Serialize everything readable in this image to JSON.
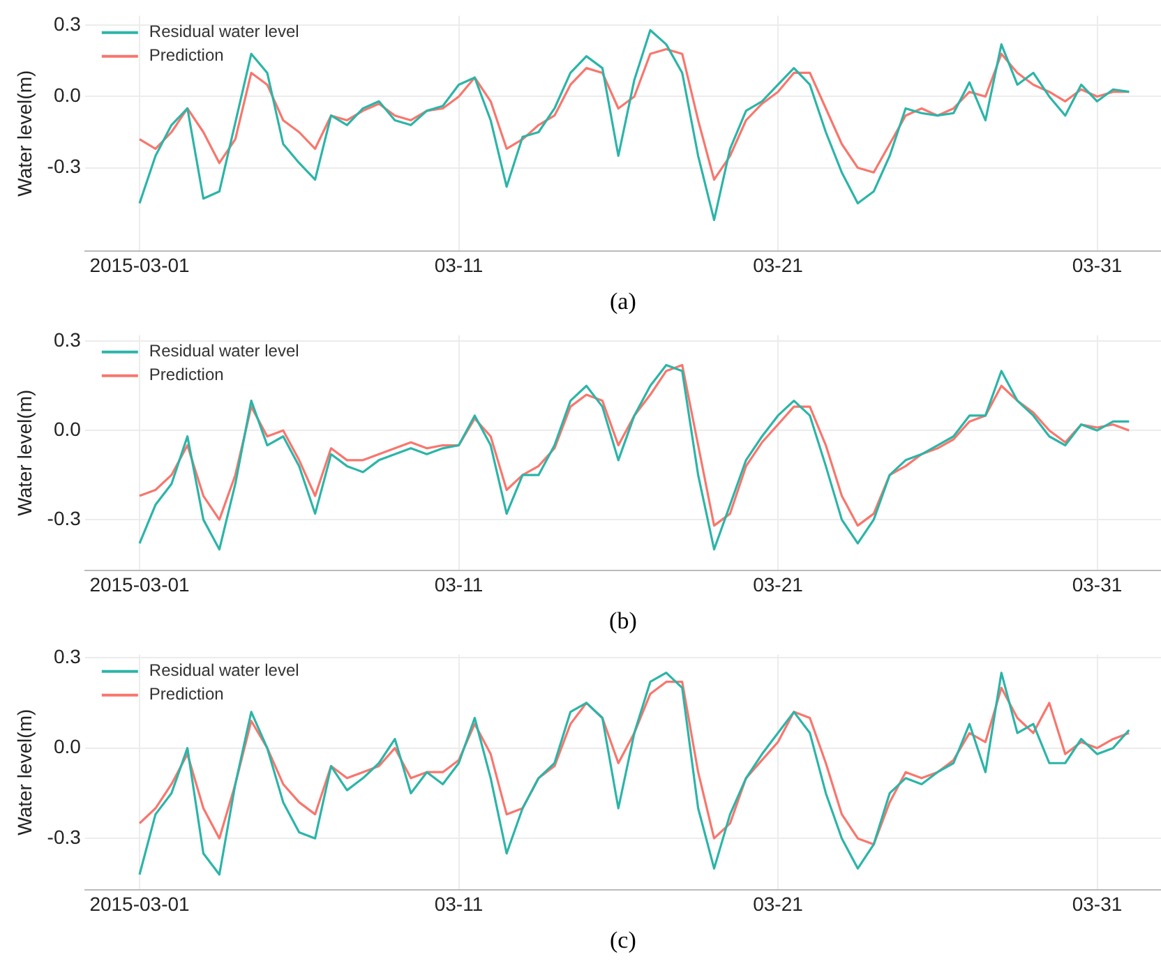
{
  "chart_data": [
    {
      "type": "line",
      "xlabel": "(a)",
      "ylabel": "Water level(m)",
      "legend": "top left",
      "grid": true,
      "marker": "none",
      "line_style": "solid",
      "xlim": [
        "2015-02-27T07:00",
        "2015-04-02T00:00"
      ],
      "ylim": [
        -0.65,
        0.34
      ],
      "yticks": [
        {
          "value": -0.3,
          "label": "-0.3"
        },
        {
          "value": 0,
          "label": "0.0"
        },
        {
          "value": 0.3,
          "label": "0.3"
        }
      ],
      "xticks": [
        {
          "value": "2015-03-01",
          "label": "2015-03-01"
        },
        {
          "value": "2015-03-11",
          "label": "03-11"
        },
        {
          "value": "2015-03-21",
          "label": "03-21"
        },
        {
          "value": "2015-03-31",
          "label": "03-31"
        }
      ],
      "x": [
        "2015-03-01T00:00",
        "2015-03-01T12:00",
        "2015-03-02T00:00",
        "2015-03-02T12:00",
        "2015-03-03T00:00",
        "2015-03-03T12:00",
        "2015-03-04T00:00",
        "2015-03-04T12:00",
        "2015-03-05T00:00",
        "2015-03-05T12:00",
        "2015-03-06T00:00",
        "2015-03-06T12:00",
        "2015-03-07T00:00",
        "2015-03-07T12:00",
        "2015-03-08T00:00",
        "2015-03-08T12:00",
        "2015-03-09T00:00",
        "2015-03-09T12:00",
        "2015-03-10T00:00",
        "2015-03-10T12:00",
        "2015-03-11T00:00",
        "2015-03-11T12:00",
        "2015-03-12T00:00",
        "2015-03-12T12:00",
        "2015-03-13T00:00",
        "2015-03-13T12:00",
        "2015-03-14T00:00",
        "2015-03-14T12:00",
        "2015-03-15T00:00",
        "2015-03-15T12:00",
        "2015-03-16T00:00",
        "2015-03-16T12:00",
        "2015-03-17T00:00",
        "2015-03-17T12:00",
        "2015-03-18T00:00",
        "2015-03-18T12:00",
        "2015-03-19T00:00",
        "2015-03-19T12:00",
        "2015-03-20T00:00",
        "2015-03-20T12:00",
        "2015-03-21T00:00",
        "2015-03-21T12:00",
        "2015-03-22T00:00",
        "2015-03-22T12:00",
        "2015-03-23T00:00",
        "2015-03-23T12:00",
        "2015-03-24T00:00",
        "2015-03-24T12:00",
        "2015-03-25T00:00",
        "2015-03-25T12:00",
        "2015-03-26T00:00",
        "2015-03-26T12:00",
        "2015-03-27T00:00",
        "2015-03-27T12:00",
        "2015-03-28T00:00",
        "2015-03-28T12:00",
        "2015-03-29T00:00",
        "2015-03-29T12:00",
        "2015-03-30T00:00",
        "2015-03-30T12:00",
        "2015-03-31T00:00",
        "2015-03-31T12:00",
        "2015-04-01T00:00"
      ],
      "series": [
        {
          "name": "Residual water level",
          "color": "#2bb5a8",
          "values": [
            -0.45,
            -0.25,
            -0.12,
            -0.05,
            -0.43,
            -0.4,
            -0.11,
            0.18,
            0.1,
            -0.2,
            -0.28,
            -0.35,
            -0.08,
            -0.12,
            -0.05,
            -0.02,
            -0.1,
            -0.12,
            -0.06,
            -0.04,
            0.05,
            0.08,
            -0.1,
            -0.38,
            -0.17,
            -0.15,
            -0.05,
            0.1,
            0.17,
            0.12,
            -0.25,
            0.07,
            0.28,
            0.22,
            0.1,
            -0.25,
            -0.52,
            -0.22,
            -0.06,
            -0.02,
            0.05,
            0.12,
            0.05,
            -0.15,
            -0.32,
            -0.45,
            -0.4,
            -0.25,
            -0.05,
            -0.07,
            -0.08,
            -0.07,
            0.06,
            -0.1,
            0.22,
            0.05,
            0.1,
            0.0,
            -0.08,
            0.05,
            -0.02,
            0.03,
            0.02
          ]
        },
        {
          "name": "Prediction",
          "color": "#f8766d",
          "values": [
            -0.18,
            -0.22,
            -0.15,
            -0.05,
            -0.15,
            -0.28,
            -0.18,
            0.1,
            0.05,
            -0.1,
            -0.15,
            -0.22,
            -0.08,
            -0.1,
            -0.06,
            -0.03,
            -0.08,
            -0.1,
            -0.06,
            -0.05,
            0.0,
            0.08,
            -0.02,
            -0.22,
            -0.18,
            -0.12,
            -0.08,
            0.05,
            0.12,
            0.1,
            -0.05,
            0.0,
            0.18,
            0.2,
            0.18,
            -0.1,
            -0.35,
            -0.25,
            -0.1,
            -0.03,
            0.02,
            0.1,
            0.1,
            -0.05,
            -0.2,
            -0.3,
            -0.32,
            -0.2,
            -0.08,
            -0.05,
            -0.08,
            -0.05,
            0.02,
            0.0,
            0.18,
            0.1,
            0.05,
            0.02,
            -0.02,
            0.03,
            0.0,
            0.02,
            0.02
          ]
        }
      ]
    },
    {
      "type": "line",
      "xlabel": "(b)",
      "ylabel": "Water level(m)",
      "legend": "top left",
      "grid": true,
      "marker": "none",
      "line_style": "solid",
      "xlim": [
        "2015-02-27T07:00",
        "2015-04-02T00:00"
      ],
      "ylim": [
        -0.47,
        0.32
      ],
      "yticks": [
        {
          "value": -0.3,
          "label": "-0.3"
        },
        {
          "value": 0,
          "label": "0.0"
        },
        {
          "value": 0.3,
          "label": "0.3"
        }
      ],
      "xticks": [
        {
          "value": "2015-03-01",
          "label": "2015-03-01"
        },
        {
          "value": "2015-03-11",
          "label": "03-11"
        },
        {
          "value": "2015-03-21",
          "label": "03-21"
        },
        {
          "value": "2015-03-31",
          "label": "03-31"
        }
      ],
      "x": [
        "2015-03-01T00:00",
        "2015-03-01T12:00",
        "2015-03-02T00:00",
        "2015-03-02T12:00",
        "2015-03-03T00:00",
        "2015-03-03T12:00",
        "2015-03-04T00:00",
        "2015-03-04T12:00",
        "2015-03-05T00:00",
        "2015-03-05T12:00",
        "2015-03-06T00:00",
        "2015-03-06T12:00",
        "2015-03-07T00:00",
        "2015-03-07T12:00",
        "2015-03-08T00:00",
        "2015-03-08T12:00",
        "2015-03-09T00:00",
        "2015-03-09T12:00",
        "2015-03-10T00:00",
        "2015-03-10T12:00",
        "2015-03-11T00:00",
        "2015-03-11T12:00",
        "2015-03-12T00:00",
        "2015-03-12T12:00",
        "2015-03-13T00:00",
        "2015-03-13T12:00",
        "2015-03-14T00:00",
        "2015-03-14T12:00",
        "2015-03-15T00:00",
        "2015-03-15T12:00",
        "2015-03-16T00:00",
        "2015-03-16T12:00",
        "2015-03-17T00:00",
        "2015-03-17T12:00",
        "2015-03-18T00:00",
        "2015-03-18T12:00",
        "2015-03-19T00:00",
        "2015-03-19T12:00",
        "2015-03-20T00:00",
        "2015-03-20T12:00",
        "2015-03-21T00:00",
        "2015-03-21T12:00",
        "2015-03-22T00:00",
        "2015-03-22T12:00",
        "2015-03-23T00:00",
        "2015-03-23T12:00",
        "2015-03-24T00:00",
        "2015-03-24T12:00",
        "2015-03-25T00:00",
        "2015-03-25T12:00",
        "2015-03-26T00:00",
        "2015-03-26T12:00",
        "2015-03-27T00:00",
        "2015-03-27T12:00",
        "2015-03-28T00:00",
        "2015-03-28T12:00",
        "2015-03-29T00:00",
        "2015-03-29T12:00",
        "2015-03-30T00:00",
        "2015-03-30T12:00",
        "2015-03-31T00:00",
        "2015-03-31T12:00",
        "2015-04-01T00:00"
      ],
      "series": [
        {
          "name": "Residual water level",
          "color": "#2bb5a8",
          "values": [
            -0.38,
            -0.25,
            -0.18,
            -0.02,
            -0.3,
            -0.4,
            -0.18,
            0.1,
            -0.05,
            -0.02,
            -0.12,
            -0.28,
            -0.08,
            -0.12,
            -0.14,
            -0.1,
            -0.08,
            -0.06,
            -0.08,
            -0.06,
            -0.05,
            0.05,
            -0.05,
            -0.28,
            -0.15,
            -0.15,
            -0.05,
            0.1,
            0.15,
            0.08,
            -0.1,
            0.05,
            0.15,
            0.22,
            0.2,
            -0.15,
            -0.4,
            -0.25,
            -0.1,
            -0.02,
            0.05,
            0.1,
            0.05,
            -0.12,
            -0.3,
            -0.38,
            -0.3,
            -0.15,
            -0.1,
            -0.08,
            -0.05,
            -0.02,
            0.05,
            0.05,
            0.2,
            0.1,
            0.05,
            -0.02,
            -0.05,
            0.02,
            0.0,
            0.03,
            0.03
          ]
        },
        {
          "name": "Prediction",
          "color": "#f8766d",
          "values": [
            -0.22,
            -0.2,
            -0.15,
            -0.05,
            -0.22,
            -0.3,
            -0.15,
            0.08,
            -0.02,
            0.0,
            -0.1,
            -0.22,
            -0.06,
            -0.1,
            -0.1,
            -0.08,
            -0.06,
            -0.04,
            -0.06,
            -0.05,
            -0.05,
            0.04,
            -0.02,
            -0.2,
            -0.15,
            -0.12,
            -0.06,
            0.08,
            0.12,
            0.1,
            -0.05,
            0.05,
            0.12,
            0.2,
            0.22,
            -0.05,
            -0.32,
            -0.28,
            -0.12,
            -0.04,
            0.02,
            0.08,
            0.08,
            -0.05,
            -0.22,
            -0.32,
            -0.28,
            -0.15,
            -0.12,
            -0.08,
            -0.06,
            -0.03,
            0.03,
            0.05,
            0.15,
            0.1,
            0.06,
            0.0,
            -0.04,
            0.02,
            0.01,
            0.02,
            0.0
          ]
        }
      ]
    },
    {
      "type": "line",
      "xlabel": "(c)",
      "ylabel": "Water level(m)",
      "legend": "top left",
      "grid": true,
      "marker": "none",
      "line_style": "solid",
      "xlim": [
        "2015-02-27T07:00",
        "2015-04-02T00:00"
      ],
      "ylim": [
        -0.47,
        0.31
      ],
      "yticks": [
        {
          "value": -0.3,
          "label": "-0.3"
        },
        {
          "value": 0,
          "label": "0.0"
        },
        {
          "value": 0.3,
          "label": "0.3"
        }
      ],
      "xticks": [
        {
          "value": "2015-03-01",
          "label": "2015-03-01"
        },
        {
          "value": "2015-03-11",
          "label": "03-11"
        },
        {
          "value": "2015-03-21",
          "label": "03-21"
        },
        {
          "value": "2015-03-31",
          "label": "03-31"
        }
      ],
      "x": [
        "2015-03-01T00:00",
        "2015-03-01T12:00",
        "2015-03-02T00:00",
        "2015-03-02T12:00",
        "2015-03-03T00:00",
        "2015-03-03T12:00",
        "2015-03-04T00:00",
        "2015-03-04T12:00",
        "2015-03-05T00:00",
        "2015-03-05T12:00",
        "2015-03-06T00:00",
        "2015-03-06T12:00",
        "2015-03-07T00:00",
        "2015-03-07T12:00",
        "2015-03-08T00:00",
        "2015-03-08T12:00",
        "2015-03-09T00:00",
        "2015-03-09T12:00",
        "2015-03-10T00:00",
        "2015-03-10T12:00",
        "2015-03-11T00:00",
        "2015-03-11T12:00",
        "2015-03-12T00:00",
        "2015-03-12T12:00",
        "2015-03-13T00:00",
        "2015-03-13T12:00",
        "2015-03-14T00:00",
        "2015-03-14T12:00",
        "2015-03-15T00:00",
        "2015-03-15T12:00",
        "2015-03-16T00:00",
        "2015-03-16T12:00",
        "2015-03-17T00:00",
        "2015-03-17T12:00",
        "2015-03-18T00:00",
        "2015-03-18T12:00",
        "2015-03-19T00:00",
        "2015-03-19T12:00",
        "2015-03-20T00:00",
        "2015-03-20T12:00",
        "2015-03-21T00:00",
        "2015-03-21T12:00",
        "2015-03-22T00:00",
        "2015-03-22T12:00",
        "2015-03-23T00:00",
        "2015-03-23T12:00",
        "2015-03-24T00:00",
        "2015-03-24T12:00",
        "2015-03-25T00:00",
        "2015-03-25T12:00",
        "2015-03-26T00:00",
        "2015-03-26T12:00",
        "2015-03-27T00:00",
        "2015-03-27T12:00",
        "2015-03-28T00:00",
        "2015-03-28T12:00",
        "2015-03-29T00:00",
        "2015-03-29T12:00",
        "2015-03-30T00:00",
        "2015-03-30T12:00",
        "2015-03-31T00:00",
        "2015-03-31T12:00",
        "2015-04-01T00:00"
      ],
      "series": [
        {
          "name": "Residual water level",
          "color": "#2bb5a8",
          "values": [
            -0.42,
            -0.22,
            -0.15,
            0.0,
            -0.35,
            -0.42,
            -0.12,
            0.12,
            0.0,
            -0.18,
            -0.28,
            -0.3,
            -0.06,
            -0.14,
            -0.1,
            -0.05,
            0.03,
            -0.15,
            -0.08,
            -0.12,
            -0.05,
            0.1,
            -0.1,
            -0.35,
            -0.2,
            -0.1,
            -0.05,
            0.12,
            0.15,
            0.1,
            -0.2,
            0.05,
            0.22,
            0.25,
            0.2,
            -0.2,
            -0.4,
            -0.22,
            -0.1,
            -0.02,
            0.05,
            0.12,
            0.05,
            -0.15,
            -0.3,
            -0.4,
            -0.32,
            -0.15,
            -0.1,
            -0.12,
            -0.08,
            -0.05,
            0.08,
            -0.08,
            0.25,
            0.05,
            0.08,
            -0.05,
            -0.05,
            0.03,
            -0.02,
            0.0,
            0.06
          ]
        },
        {
          "name": "Prediction",
          "color": "#f8766d",
          "values": [
            -0.25,
            -0.2,
            -0.12,
            -0.02,
            -0.2,
            -0.3,
            -0.12,
            0.09,
            0.0,
            -0.12,
            -0.18,
            -0.22,
            -0.06,
            -0.1,
            -0.08,
            -0.06,
            0.0,
            -0.1,
            -0.08,
            -0.08,
            -0.04,
            0.08,
            -0.02,
            -0.22,
            -0.2,
            -0.1,
            -0.06,
            0.08,
            0.15,
            0.1,
            -0.05,
            0.05,
            0.18,
            0.22,
            0.22,
            -0.08,
            -0.3,
            -0.25,
            -0.1,
            -0.04,
            0.02,
            0.12,
            0.1,
            -0.05,
            -0.22,
            -0.3,
            -0.32,
            -0.18,
            -0.08,
            -0.1,
            -0.08,
            -0.04,
            0.05,
            0.02,
            0.2,
            0.1,
            0.05,
            0.15,
            -0.02,
            0.02,
            0.0,
            0.03,
            0.05
          ]
        }
      ]
    }
  ]
}
